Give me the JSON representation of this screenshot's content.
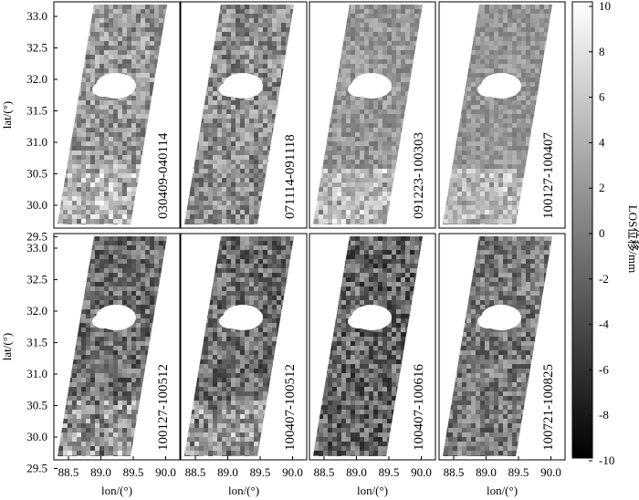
{
  "figure": {
    "y_axis_label": "lat/(°)",
    "x_axis_label": "lon/(°)",
    "y_ticks": [
      "33.0",
      "32.5",
      "32.0",
      "31.5",
      "31.0",
      "30.5",
      "30.0",
      "29.5"
    ],
    "x_ticks": [
      "88.5",
      "89.0",
      "89.5",
      "90.0"
    ]
  },
  "panels": [
    {
      "id": "030409-040114"
    },
    {
      "id": "071114-091118"
    },
    {
      "id": "091223-100303"
    },
    {
      "id": "100127-100407"
    },
    {
      "id": "100127-100512"
    },
    {
      "id": "100407-100512"
    },
    {
      "id": "100407-100616"
    },
    {
      "id": "100721-100825"
    }
  ],
  "colorbar": {
    "label": "LOS位移/mm",
    "ticks": [
      "10",
      "8",
      "6",
      "4",
      "2",
      "0",
      "-2",
      "-4",
      "-6",
      "-8",
      "-10"
    ],
    "colormap": [
      "#ffffff",
      "#000000"
    ]
  },
  "colors": {
    "frame": "#000000",
    "background": "#ffffff"
  }
}
